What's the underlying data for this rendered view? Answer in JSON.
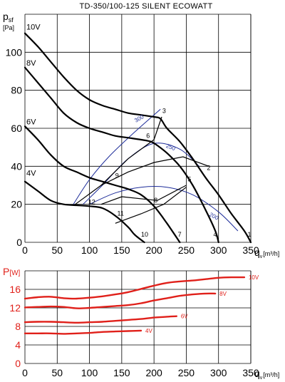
{
  "chart_data": [
    {
      "type": "line",
      "title": "TD-350/100-125 SILENT ECOWATT",
      "ylabel_main": "p",
      "ylabel_sub": "sf",
      "ylabel_unit": "[Pa]",
      "xlabel_main": "q",
      "xlabel_sub": "v",
      "xlabel_unit": "[m³/h]",
      "xlim": [
        0,
        350
      ],
      "ylim": [
        0,
        120
      ],
      "x_ticks": [
        "0",
        "50",
        "100",
        "150",
        "200",
        "250",
        "300",
        "350"
      ],
      "y_ticks": [
        "0",
        "20",
        "40",
        "60",
        "80",
        "100",
        "120"
      ],
      "x_tick_values": [
        0,
        50,
        100,
        150,
        200,
        250,
        300,
        350
      ],
      "y_tick_values": [
        0,
        20,
        40,
        60,
        80,
        100,
        120
      ],
      "grid": true,
      "series": [
        {
          "name": "10V",
          "x": [
            0,
            20,
            40,
            60,
            80,
            100,
            120,
            140,
            160,
            180,
            200,
            210,
            220,
            240,
            260,
            280,
            300,
            320,
            340,
            350
          ],
          "y": [
            110,
            103,
            95,
            87,
            80,
            75,
            72,
            70,
            68,
            67,
            66,
            65,
            60,
            53,
            44,
            34,
            25,
            15,
            6,
            0
          ]
        },
        {
          "name": "8V",
          "x": [
            0,
            20,
            40,
            60,
            80,
            100,
            120,
            140,
            160,
            180,
            195,
            205,
            220,
            240,
            260,
            280,
            295,
            300
          ],
          "y": [
            92,
            84,
            76,
            68,
            63,
            60,
            58,
            56,
            55,
            54,
            53,
            51,
            47,
            40,
            30,
            17,
            6,
            0
          ]
        },
        {
          "name": "6V",
          "x": [
            0,
            20,
            40,
            60,
            80,
            100,
            120,
            140,
            160,
            180,
            200,
            220,
            240
          ],
          "y": [
            61,
            54,
            46,
            40,
            37,
            34,
            32,
            30,
            28,
            25,
            19,
            10,
            0
          ]
        },
        {
          "name": "4V",
          "x": [
            0,
            20,
            40,
            60,
            80,
            100,
            120,
            140,
            160,
            170,
            185
          ],
          "y": [
            32,
            27,
            22,
            20,
            19.5,
            19,
            18,
            14,
            8,
            4,
            0
          ]
        }
      ],
      "system_curves": [
        {
          "name": "300",
          "x": [
            75,
            100,
            130,
            170,
            210
          ],
          "y": [
            20,
            33,
            45,
            58,
            70
          ]
        },
        {
          "name": "250",
          "x": [
            90,
            120,
            160,
            200,
            240,
            270
          ],
          "y": [
            20,
            30,
            44,
            52,
            49,
            40
          ]
        },
        {
          "name": "200",
          "x": [
            100,
            140,
            180,
            220,
            260,
            300,
            330
          ],
          "y": [
            20,
            26,
            29,
            29,
            25,
            16,
            6
          ]
        }
      ],
      "point_labels": [
        "1",
        "2",
        "3",
        "4",
        "5",
        "6",
        "7",
        "8",
        "9",
        "10",
        "11",
        "12"
      ],
      "series_labels": [
        "10V",
        "8V",
        "6V",
        "4V"
      ],
      "system_labels": [
        "300",
        "250",
        "200"
      ]
    },
    {
      "type": "line",
      "ylabel_main": "P",
      "ylabel_unit": "[W]",
      "xlabel_main": "q",
      "xlabel_sub": "v",
      "xlabel_unit": "[m³/h]",
      "xlim": [
        0,
        350
      ],
      "ylim": [
        0,
        20
      ],
      "x_ticks": [
        "0",
        "50",
        "100",
        "150",
        "200",
        "250",
        "300",
        "350"
      ],
      "y_ticks": [
        "0",
        "4",
        "8",
        "12",
        "16"
      ],
      "x_tick_values": [
        0,
        50,
        100,
        150,
        200,
        250,
        300,
        350
      ],
      "y_tick_values": [
        0,
        4,
        8,
        12,
        16
      ],
      "grid": true,
      "series": [
        {
          "name": "10V",
          "x": [
            0,
            20,
            40,
            60,
            80,
            100,
            120,
            140,
            160,
            180,
            200,
            220,
            240,
            260,
            280,
            300,
            320,
            340
          ],
          "y": [
            14.0,
            14.3,
            14.4,
            14.1,
            14.0,
            14.2,
            14.5,
            14.9,
            15.4,
            16.1,
            16.8,
            17.4,
            17.7,
            17.9,
            18.2,
            18.5,
            18.6,
            18.6
          ]
        },
        {
          "name": "8V",
          "x": [
            0,
            20,
            40,
            60,
            80,
            100,
            120,
            140,
            160,
            180,
            200,
            220,
            240,
            260,
            280,
            295
          ],
          "y": [
            12.1,
            12.2,
            12.3,
            12.2,
            11.9,
            12.0,
            12.2,
            12.4,
            12.6,
            13.0,
            13.6,
            14.1,
            14.6,
            14.9,
            15.1,
            15.1
          ]
        },
        {
          "name": "6V",
          "x": [
            0,
            20,
            40,
            60,
            80,
            100,
            120,
            140,
            160,
            180,
            200,
            220,
            235
          ],
          "y": [
            8.9,
            9.0,
            9.0,
            8.9,
            8.8,
            8.9,
            9.0,
            9.2,
            9.4,
            9.6,
            9.9,
            10.1,
            10.2
          ]
        },
        {
          "name": "4V",
          "x": [
            0,
            20,
            40,
            60,
            80,
            100,
            120,
            140,
            160,
            180
          ],
          "y": [
            6.5,
            6.5,
            6.5,
            6.4,
            6.5,
            6.6,
            6.8,
            6.9,
            7.0,
            7.1
          ]
        }
      ],
      "series_labels": [
        "10V",
        "8V",
        "6V",
        "4V"
      ]
    }
  ]
}
